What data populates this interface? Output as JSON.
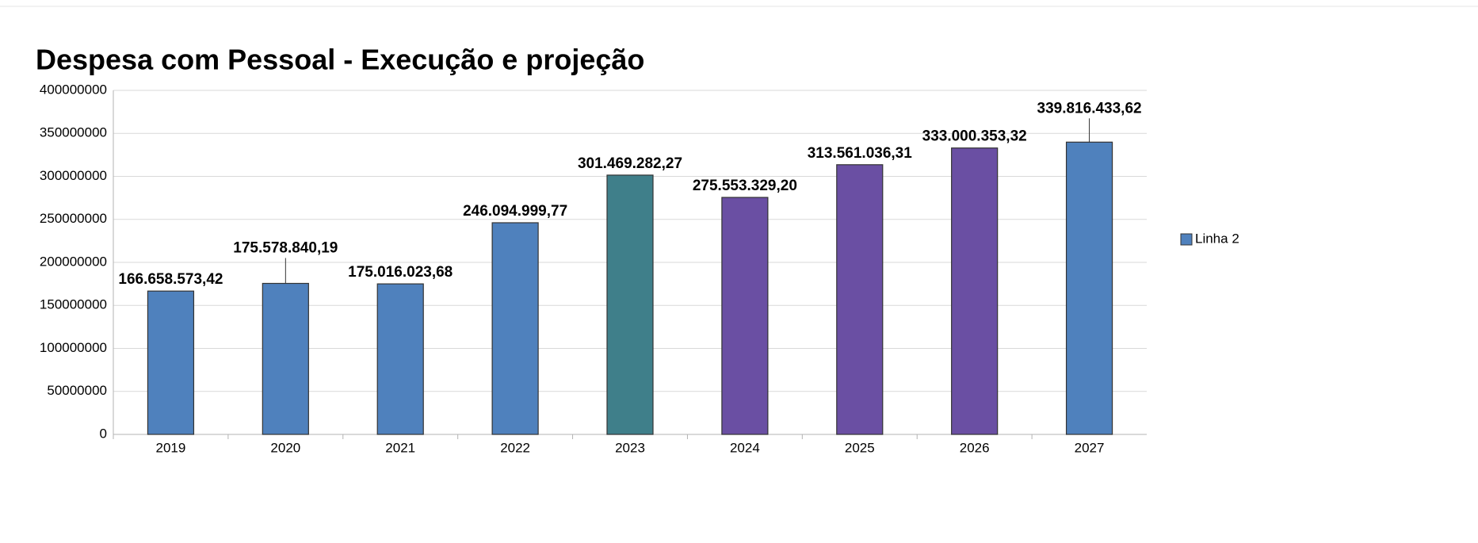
{
  "chart_data": {
    "type": "bar",
    "title": "Despesa com Pessoal - Execução e projeção",
    "categories": [
      "2019",
      "2020",
      "2021",
      "2022",
      "2023",
      "2024",
      "2025",
      "2026",
      "2027"
    ],
    "series": [
      {
        "name": "Linha 2",
        "color": "#4f81bd",
        "values": [
          166658573.42,
          175578840.19,
          175016023.68,
          246094999.77,
          301469282.27,
          275553329.2,
          313561036.31,
          333000353.32,
          339816433.62
        ],
        "value_labels": [
          "166.658.573,42",
          "175.578.840,19",
          "175.016.023,68",
          "246.094.999,77",
          "301.469.282,27",
          "275.553.329,20",
          "313.561.036,31",
          "333.000.353,32",
          "339.816.433,62"
        ],
        "colors": [
          "#4f81bd",
          "#4f81bd",
          "#4f81bd",
          "#4f81bd",
          "#3f7f8a",
          "#6a4fa3",
          "#6a4fa3",
          "#6a4fa3",
          "#4f81bd"
        ]
      }
    ],
    "ylim": [
      0,
      400000000
    ],
    "yticks": [
      0,
      50000000,
      100000000,
      150000000,
      200000000,
      250000000,
      300000000,
      350000000,
      400000000
    ],
    "grid": true,
    "legend": "right"
  }
}
